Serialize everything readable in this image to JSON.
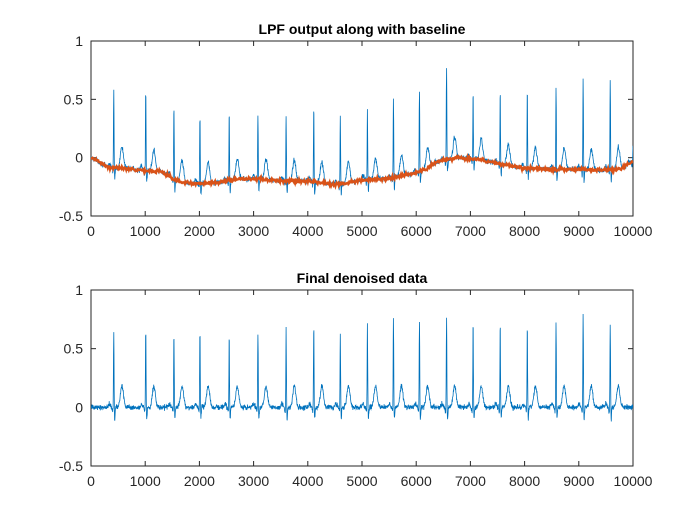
{
  "chart_data": [
    {
      "type": "line",
      "title": "LPF output along with baseline",
      "xlabel": "",
      "ylabel": "",
      "xlim": [
        0,
        10000
      ],
      "ylim": [
        -0.5,
        1
      ],
      "xticks": [
        0,
        1000,
        2000,
        3000,
        4000,
        5000,
        6000,
        7000,
        8000,
        9000,
        10000
      ],
      "yticks": [
        -0.5,
        0,
        0.5,
        1
      ],
      "xtick_labels": [
        "0",
        "1000",
        "2000",
        "3000",
        "4000",
        "5000",
        "6000",
        "7000",
        "8000",
        "9000",
        "10000"
      ],
      "ytick_labels": [
        "-0.5",
        "0",
        "0.5",
        "1"
      ],
      "grid": false,
      "series": [
        {
          "role": "lpf-output-signal",
          "color": "#0072BD",
          "beat_x": [
            420,
            1010,
            1530,
            2010,
            2550,
            3080,
            3600,
            4110,
            4600,
            5100,
            5580,
            6060,
            6560,
            7050,
            7550,
            8050,
            8580,
            9080,
            9580,
            10000
          ],
          "peak_y": [
            0.58,
            0.58,
            0.45,
            0.37,
            0.42,
            0.38,
            0.37,
            0.43,
            0.37,
            0.41,
            0.53,
            0.58,
            0.76,
            0.56,
            0.58,
            0.59,
            0.6,
            0.67,
            0.66,
            0.1
          ]
        },
        {
          "role": "baseline",
          "color": "#D95319",
          "x": [
            0,
            100,
            300,
            600,
            1000,
            1300,
            1600,
            1800,
            2100,
            2400,
            2600,
            3000,
            3500,
            4000,
            4500,
            4700,
            5000,
            5500,
            5900,
            6200,
            6300,
            6500,
            6800,
            7200,
            7600,
            8000,
            8500,
            9000,
            9500,
            9800,
            10000
          ],
          "y": [
            0.0,
            -0.02,
            -0.08,
            -0.09,
            -0.11,
            -0.12,
            -0.2,
            -0.22,
            -0.22,
            -0.21,
            -0.19,
            -0.18,
            -0.2,
            -0.2,
            -0.23,
            -0.22,
            -0.19,
            -0.18,
            -0.14,
            -0.1,
            -0.05,
            -0.02,
            0.0,
            -0.02,
            -0.06,
            -0.09,
            -0.1,
            -0.1,
            -0.11,
            -0.09,
            -0.03
          ]
        }
      ]
    },
    {
      "type": "line",
      "title": "Final denoised data",
      "xlabel": "",
      "ylabel": "",
      "xlim": [
        0,
        10000
      ],
      "ylim": [
        -0.5,
        1
      ],
      "xticks": [
        0,
        1000,
        2000,
        3000,
        4000,
        5000,
        6000,
        7000,
        8000,
        9000,
        10000
      ],
      "yticks": [
        -0.5,
        0,
        0.5,
        1
      ],
      "xtick_labels": [
        "0",
        "1000",
        "2000",
        "3000",
        "4000",
        "5000",
        "6000",
        "7000",
        "8000",
        "9000",
        "10000"
      ],
      "ytick_labels": [
        "-0.5",
        "0",
        "0.5",
        "1"
      ],
      "grid": false,
      "series": [
        {
          "role": "denoised-signal",
          "color": "#0072BD",
          "beat_x": [
            420,
            1010,
            1530,
            2010,
            2550,
            3080,
            3600,
            4110,
            4600,
            5100,
            5580,
            6060,
            6560,
            7050,
            7550,
            8050,
            8580,
            9080,
            9580
          ],
          "peak_y": [
            0.65,
            0.66,
            0.64,
            0.65,
            0.63,
            0.65,
            0.68,
            0.7,
            0.62,
            0.72,
            0.75,
            0.74,
            0.76,
            0.73,
            0.73,
            0.71,
            0.73,
            0.79,
            0.7
          ]
        }
      ]
    }
  ]
}
